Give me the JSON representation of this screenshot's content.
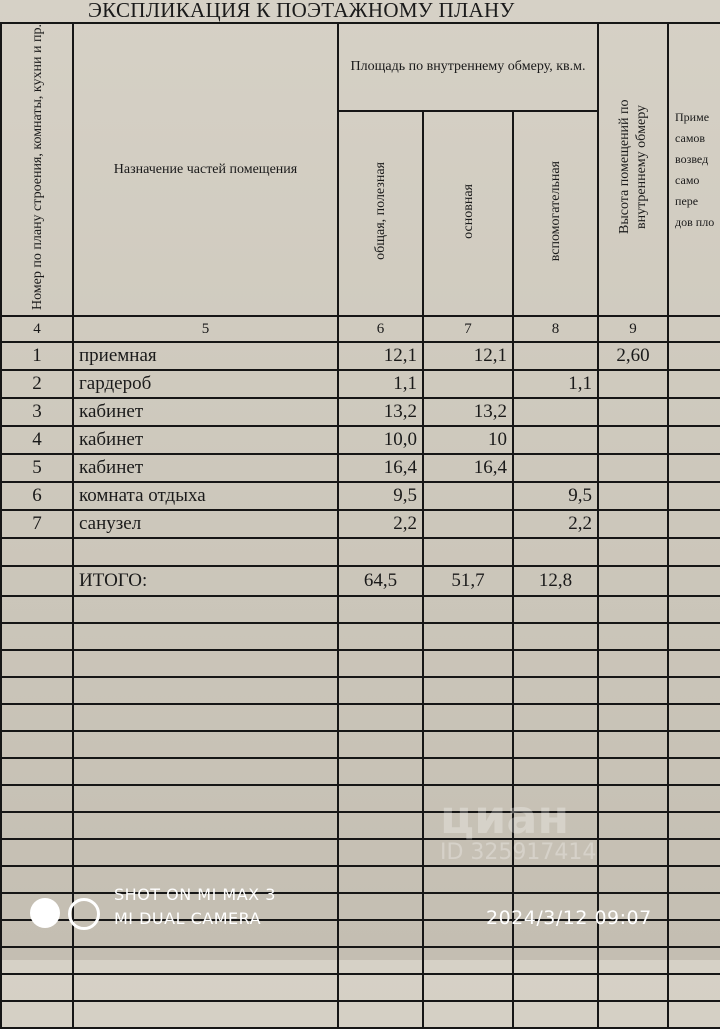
{
  "document": {
    "title": "ЭКСПЛИКАЦИЯ К ПОЭТАЖНОМУ ПЛАНУ",
    "headers": {
      "room_no": "Номер по плану строения, комнаты, кухни и пр.",
      "purpose": "Назначение частей помещения",
      "area_group": "Площадь по внутреннему обмеру, кв.м.",
      "area_total": "общая, полезная",
      "area_main": "основная",
      "area_aux": "вспомогательная",
      "height": "Высота помещений по внутреннему обмеру",
      "note_partial": "Приме самов возвед само пере дов пло"
    },
    "column_numbers": [
      "4",
      "5",
      "6",
      "7",
      "8",
      "9",
      ""
    ],
    "rows": [
      {
        "no": "1",
        "name": "приемная",
        "total": "12,1",
        "main": "12,1",
        "aux": "",
        "height": "2,60"
      },
      {
        "no": "2",
        "name": "гардероб",
        "total": "1,1",
        "main": "",
        "aux": "1,1",
        "height": ""
      },
      {
        "no": "3",
        "name": "кабинет",
        "total": "13,2",
        "main": "13,2",
        "aux": "",
        "height": ""
      },
      {
        "no": "4",
        "name": "кабинет",
        "total": "10,0",
        "main": "10",
        "aux": "",
        "height": ""
      },
      {
        "no": "5",
        "name": "кабинет",
        "total": "16,4",
        "main": "16,4",
        "aux": "",
        "height": ""
      },
      {
        "no": "6",
        "name": "комната отдыха",
        "total": "9,5",
        "main": "",
        "aux": "9,5",
        "height": ""
      },
      {
        "no": "7",
        "name": "санузел",
        "total": "2,2",
        "main": "",
        "aux": "2,2",
        "height": ""
      }
    ],
    "totals": {
      "label": "ИТОГО:",
      "total": "64,5",
      "main": "51,7",
      "aux": "12,8"
    }
  },
  "watermark": {
    "brand": "циан",
    "id": "ID 325917414"
  },
  "camera_stamp": {
    "line1": "SHOT ON MI MAX 3",
    "line2": "MI DUAL CAMERA",
    "datetime": "2024/3/12  09:07"
  }
}
